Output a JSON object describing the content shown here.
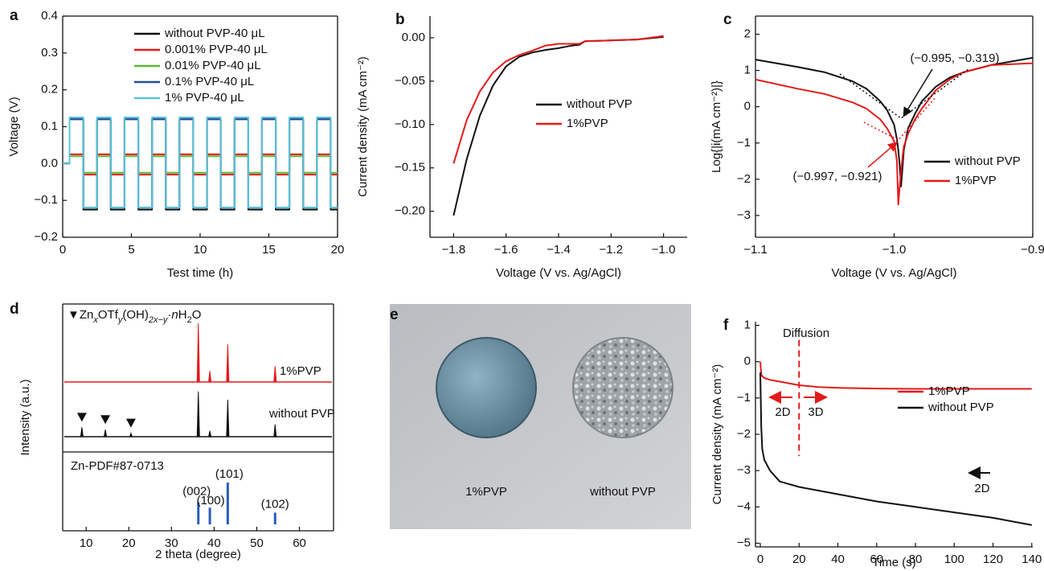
{
  "chart_data": [
    {
      "type": "line",
      "panel": "a",
      "xlabel": "Test time (h)",
      "ylabel": "Voltage (V)",
      "xlim": [
        0,
        20
      ],
      "ylim": [
        -0.2,
        0.4
      ],
      "xticks": [
        0,
        5,
        10,
        15,
        20
      ],
      "yticks": [
        {
          "value": -0.2,
          "label": "−0.2"
        },
        {
          "value": -0.1,
          "label": "−0.1"
        },
        {
          "value": 0,
          "label": "0.0"
        },
        0.1,
        0.2,
        0.3,
        0.4
      ],
      "x": [
        0,
        0.5,
        0.5,
        1.5,
        1.5,
        2.5,
        2.5,
        3.5,
        3.5,
        4.5,
        4.5,
        5.5,
        5.5,
        6.5,
        6.5,
        7.5,
        7.5,
        8.5,
        8.5,
        9.5,
        9.5,
        10.5,
        10.5,
        11.5,
        11.5,
        12.5,
        12.5,
        13.5,
        13.5,
        14.5,
        14.5,
        15.5,
        15.5,
        16.5,
        16.5,
        17.5,
        17.5,
        18.5,
        18.5,
        19.5,
        19.5,
        20
      ],
      "series": [
        {
          "name": "without PVP-40 μL",
          "color": "#111111",
          "values": [
            0,
            0,
            0.12,
            0.12,
            -0.125,
            -0.125,
            0.12,
            0.12,
            -0.125,
            -0.125,
            0.12,
            0.12,
            -0.125,
            -0.125,
            0.12,
            0.12,
            -0.125,
            -0.125,
            0.12,
            0.12,
            -0.125,
            -0.125,
            0.12,
            0.12,
            -0.125,
            -0.125,
            0.12,
            0.12,
            -0.125,
            -0.125,
            0.12,
            0.12,
            -0.125,
            -0.125,
            0.12,
            0.12,
            -0.125,
            -0.125,
            0.12,
            0.12,
            -0.125,
            -0.125
          ]
        },
        {
          "name": "0.001% PVP-40 μL",
          "color": "#e31a1c",
          "values": [
            0,
            0,
            0.025,
            0.025,
            -0.03,
            -0.03,
            0.025,
            0.025,
            -0.03,
            -0.03,
            0.025,
            0.025,
            -0.03,
            -0.03,
            0.025,
            0.025,
            -0.03,
            -0.03,
            0.025,
            0.025,
            -0.03,
            -0.03,
            0.025,
            0.025,
            -0.03,
            -0.03,
            0.025,
            0.025,
            -0.03,
            -0.03,
            0.025,
            0.025,
            -0.03,
            -0.03,
            0.025,
            0.025,
            -0.03,
            -0.03,
            0.025,
            0.025,
            -0.03,
            -0.03
          ]
        },
        {
          "name": "0.01% PVP-40 μL",
          "color": "#5cb82e",
          "values": [
            0,
            0,
            0.02,
            0.02,
            -0.025,
            -0.025,
            0.02,
            0.02,
            -0.025,
            -0.025,
            0.02,
            0.02,
            -0.025,
            -0.025,
            0.02,
            0.02,
            -0.025,
            -0.025,
            0.02,
            0.02,
            -0.025,
            -0.025,
            0.02,
            0.02,
            -0.025,
            -0.025,
            0.02,
            0.02,
            -0.025,
            -0.025,
            0.02,
            0.02,
            -0.025,
            -0.025,
            0.02,
            0.02,
            -0.025,
            -0.025,
            0.02,
            0.02,
            -0.025,
            -0.025
          ]
        },
        {
          "name": "0.1% PVP-40 μL",
          "color": "#1f4e9e",
          "values": [
            0,
            0,
            0.12,
            0.12,
            -0.12,
            -0.12,
            0.12,
            0.12,
            -0.12,
            -0.12,
            0.12,
            0.12,
            -0.12,
            -0.12,
            0.12,
            0.12,
            -0.12,
            -0.12,
            0.12,
            0.12,
            -0.12,
            -0.12,
            0.12,
            0.12,
            -0.12,
            -0.12,
            0.12,
            0.12,
            -0.12,
            -0.12,
            0.12,
            0.12,
            -0.12,
            -0.12,
            0.12,
            0.12,
            -0.12,
            -0.12,
            0.12,
            0.12,
            -0.12,
            -0.12
          ]
        },
        {
          "name": "1% PVP-40 μL",
          "color": "#5bc3d8",
          "values": [
            0,
            0,
            0.125,
            0.125,
            -0.12,
            -0.12,
            0.125,
            0.125,
            -0.12,
            -0.12,
            0.125,
            0.125,
            -0.12,
            -0.12,
            0.125,
            0.125,
            -0.12,
            -0.12,
            0.125,
            0.125,
            -0.12,
            -0.12,
            0.125,
            0.125,
            -0.12,
            -0.12,
            0.125,
            0.125,
            -0.12,
            -0.12,
            0.125,
            0.125,
            -0.12,
            -0.12,
            0.125,
            0.125,
            -0.12,
            -0.12,
            0.125,
            0.125,
            -0.12,
            -0.12
          ]
        }
      ]
    },
    {
      "type": "line",
      "panel": "b",
      "xlabel": "Voltage (V vs. Ag/AgCl)",
      "ylabel": "Current density (mA cm⁻²)",
      "xlim": [
        -1.89,
        -0.91
      ],
      "ylim": [
        -0.23,
        0.025
      ],
      "xticks": [
        {
          "value": -1.8,
          "label": "−1.8"
        },
        {
          "value": -1.6,
          "label": "−1.6"
        },
        {
          "value": -1.4,
          "label": "−1.4"
        },
        {
          "value": -1.2,
          "label": "−1.2"
        },
        {
          "value": -1.0,
          "label": "−1.0"
        }
      ],
      "yticks": [
        {
          "value": -0.2,
          "label": "−0.20"
        },
        {
          "value": -0.15,
          "label": "−0.15"
        },
        {
          "value": -0.1,
          "label": "−0.10"
        },
        {
          "value": -0.05,
          "label": "−0.05"
        },
        {
          "value": 0,
          "label": "0.00"
        }
      ],
      "x": [
        -1.8,
        -1.75,
        -1.7,
        -1.65,
        -1.6,
        -1.55,
        -1.5,
        -1.45,
        -1.4,
        -1.35,
        -1.32,
        -1.3,
        -1.2,
        -1.1,
        -1.0
      ],
      "series": [
        {
          "name": "without PVP",
          "color": "#111111",
          "values": [
            -0.205,
            -0.14,
            -0.09,
            -0.055,
            -0.033,
            -0.022,
            -0.017,
            -0.014,
            -0.012,
            -0.009,
            -0.008,
            -0.004,
            -0.003,
            -0.002,
            0.001
          ]
        },
        {
          "name": "1%PVP",
          "color": "#e31a1c",
          "values": [
            -0.145,
            -0.095,
            -0.062,
            -0.04,
            -0.027,
            -0.02,
            -0.015,
            -0.009,
            -0.007,
            -0.007,
            -0.007,
            -0.004,
            -0.003,
            -0.002,
            0.002
          ]
        }
      ]
    },
    {
      "type": "line",
      "panel": "c",
      "xlabel": "Voltage (V vs. Ag/AgCl)",
      "ylabel": "Log{|i(mA cm⁻²)|}",
      "xlim": [
        -1.1,
        -0.9
      ],
      "ylim": [
        -3.6,
        2.5
      ],
      "xticks": [
        {
          "value": -1.1,
          "label": "−1.1"
        },
        {
          "value": -1.0,
          "label": "−1.0"
        },
        {
          "value": -0.9,
          "label": "−0.9"
        }
      ],
      "yticks": [
        {
          "value": -3,
          "label": "−3"
        },
        {
          "value": -2,
          "label": "−2"
        },
        {
          "value": -1,
          "label": "−1"
        },
        0,
        1,
        2
      ],
      "x": [
        -1.1,
        -1.07,
        -1.05,
        -1.03,
        -1.02,
        -1.01,
        -1.005,
        -1.0,
        -0.998,
        -0.997,
        -0.996,
        -0.995,
        -0.994,
        -0.993,
        -0.99,
        -0.985,
        -0.98,
        -0.97,
        -0.96,
        -0.95,
        -0.93,
        -0.9
      ],
      "series": [
        {
          "name": "without PVP",
          "color": "#111111",
          "values": [
            1.3,
            1.1,
            0.95,
            0.7,
            0.5,
            0.15,
            -0.1,
            -0.5,
            -0.9,
            -1.2,
            -1.6,
            -2.2,
            -1.7,
            -1.2,
            -0.6,
            -0.2,
            0.15,
            0.55,
            0.8,
            0.95,
            1.15,
            1.35
          ]
        },
        {
          "name": "1%PVP",
          "color": "#e31a1c",
          "values": [
            0.75,
            0.5,
            0.35,
            0.12,
            -0.05,
            -0.35,
            -0.6,
            -0.95,
            -1.5,
            -2.7,
            -2.2,
            -1.8,
            -1.4,
            -1.1,
            -0.75,
            -0.35,
            -0.05,
            0.45,
            0.75,
            0.95,
            1.15,
            1.2
          ]
        }
      ],
      "annotations": [
        {
          "text": "(−0.995, −0.319)",
          "color": "#111111"
        },
        {
          "text": "(−0.997, −0.921)",
          "color": "#e31a1c"
        }
      ]
    },
    {
      "type": "xrd",
      "panel": "d",
      "xlabel": "2 theta (degree)",
      "ylabel": "Intensity (a.u.)",
      "marker_label": [
        "▼Zn",
        "x",
        "OTf",
        "y",
        "(OH)",
        "2x−y",
        "·",
        "n",
        "H",
        "2",
        "O"
      ],
      "xlim": [
        4.5,
        68
      ],
      "xticks": [
        10,
        20,
        30,
        40,
        50,
        60
      ],
      "series": [
        {
          "name": "1%PVP",
          "color": "#e31a1c",
          "x": [
            36.3,
            39.0,
            43.2,
            54.3
          ],
          "values": [
            100,
            19,
            64,
            27
          ]
        },
        {
          "name": "without PVP",
          "color": "#111111",
          "x": [
            9,
            14.5,
            20.5,
            36.3,
            39.0,
            43.2,
            54.3
          ],
          "values": [
            16,
            12,
            6,
            77,
            10,
            63,
            21
          ]
        },
        {
          "name": "Zn-PDF#87-0713",
          "color": "#2a5cb8",
          "x": [
            36.3,
            39.0,
            43.2,
            54.3
          ],
          "values": [
            53,
            40,
            100,
            28
          ],
          "peak_labels": [
            "(002)",
            "(100)",
            "(101)",
            "(102)"
          ]
        }
      ]
    },
    {
      "type": "image",
      "panel": "e",
      "labels": [
        "1%PVP",
        "without PVP"
      ]
    },
    {
      "type": "line",
      "panel": "f",
      "xlabel": "Time (s)",
      "ylabel": "Current density (mA cm⁻²)",
      "xlim": [
        -2.5,
        140.5
      ],
      "ylim": [
        -5.1,
        1.1
      ],
      "xticks": [
        0,
        20,
        40,
        60,
        80,
        100,
        120,
        140
      ],
      "yticks": [
        {
          "value": -5,
          "label": "−5"
        },
        {
          "value": -4,
          "label": "−4"
        },
        {
          "value": -3,
          "label": "−3"
        },
        {
          "value": -2,
          "label": "−2"
        },
        {
          "value": -1,
          "label": "−1"
        },
        0,
        1
      ],
      "x": [
        0,
        0.5,
        1,
        2,
        5,
        10,
        20,
        30,
        40,
        60,
        80,
        100,
        120,
        140
      ],
      "series": [
        {
          "name": "1%PVP",
          "color": "#e31a1c",
          "values": [
            0,
            -0.35,
            -0.4,
            -0.45,
            -0.5,
            -0.55,
            -0.65,
            -0.7,
            -0.72,
            -0.74,
            -0.75,
            -0.75,
            -0.75,
            -0.75
          ]
        },
        {
          "name": "without PVP",
          "color": "#111111",
          "values": [
            -0.3,
            -1.8,
            -2.4,
            -2.7,
            -3.0,
            -3.3,
            -3.45,
            -3.55,
            -3.65,
            -3.85,
            -4.0,
            -4.15,
            -4.3,
            -4.5
          ]
        }
      ],
      "vline": 20,
      "annotations": [
        {
          "text": "Diffusion",
          "color": "#e31a1c"
        },
        {
          "text": "2D",
          "color": "#e31a1c"
        },
        {
          "text": "3D",
          "color": "#e31a1c"
        },
        {
          "text": "2D",
          "color": "#111111"
        }
      ]
    }
  ]
}
